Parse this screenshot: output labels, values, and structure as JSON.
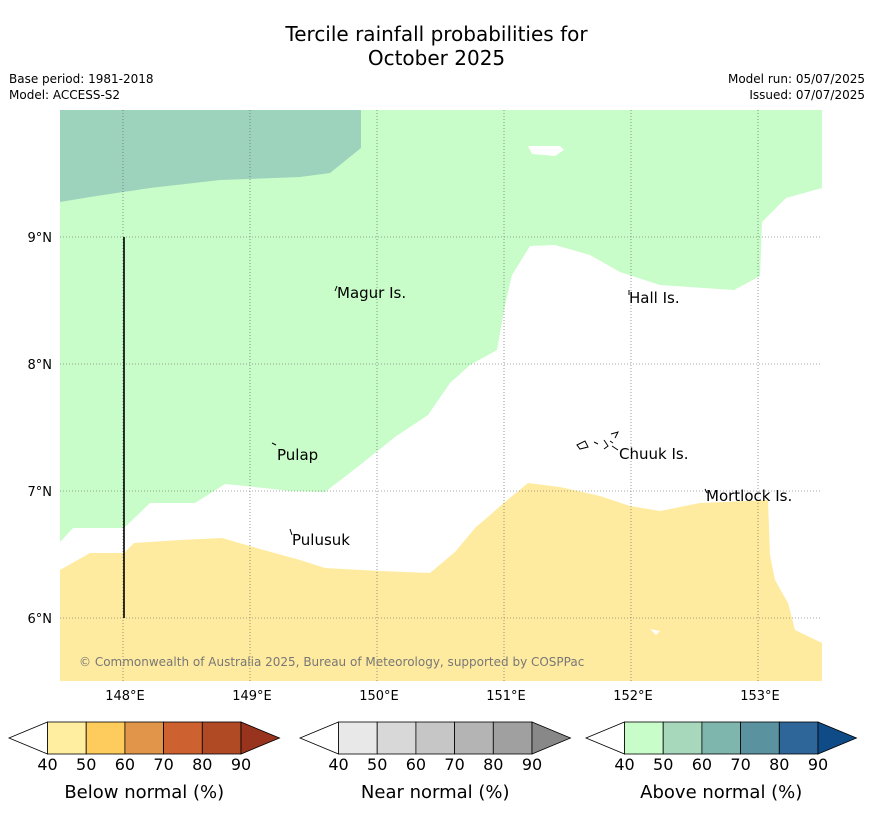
{
  "title": {
    "line1": "Tercile rainfall probabilities for",
    "line2": "October 2025"
  },
  "meta_left": {
    "base_period": "Base period: 1981-2018",
    "model": "Model: ACCESS-S2"
  },
  "meta_right": {
    "model_run": "Model run: 05/07/2025",
    "issued": "Issued: 07/07/2025"
  },
  "map": {
    "lon_ticks": [
      "148°E",
      "149°E",
      "150°E",
      "151°E",
      "152°E",
      "153°E"
    ],
    "lat_ticks": [
      "9°N",
      "8°N",
      "7°N",
      "6°N"
    ],
    "places": [
      "Magur Is.",
      "Hall Is.",
      "Pulap",
      "Chuuk Is.",
      "Mortlock Is.",
      "Pulusuk"
    ],
    "copyright": "© Commonwealth of Australia 2025, Bureau of Meteorology, supported by COSPPac",
    "colors": {
      "above_40": "#c8fcc8",
      "above_50": "#9dd2bc",
      "below_40": "#ffeb9f",
      "no_category": "#ffffff"
    }
  },
  "legends": [
    {
      "label": "Below normal (%)",
      "ticks": [
        "40",
        "50",
        "60",
        "70",
        "80",
        "90"
      ],
      "colors": [
        "#ffffff",
        "#ffeda0",
        "#fecc5c",
        "#e0954a",
        "#cd6230",
        "#b04a25",
        "#98341e"
      ]
    },
    {
      "label": "Near normal (%)",
      "ticks": [
        "40",
        "50",
        "60",
        "70",
        "80",
        "90"
      ],
      "colors": [
        "#ffffff",
        "#e8e8e8",
        "#d8d8d8",
        "#c6c6c6",
        "#b4b4b4",
        "#a0a0a0",
        "#888888"
      ]
    },
    {
      "label": "Above normal (%)",
      "ticks": [
        "40",
        "50",
        "60",
        "70",
        "80",
        "90"
      ],
      "colors": [
        "#ffffff",
        "#c8fcc8",
        "#a7d8bc",
        "#7eb5ad",
        "#5b929f",
        "#2f6699",
        "#0f4c87"
      ]
    }
  ]
}
